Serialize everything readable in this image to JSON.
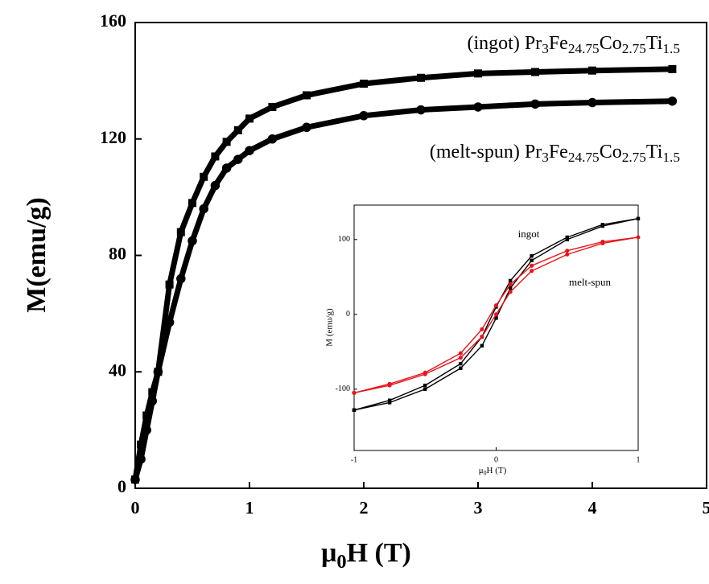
{
  "chart_data": [
    {
      "type": "scatter",
      "xlabel": [
        "μ",
        "0",
        "H (T)"
      ],
      "ylabel": "M(emu/g)",
      "annotations": [
        [
          "(ingot) Pr",
          "3",
          "Fe",
          "24.75",
          "Co",
          "2.75",
          "Ti",
          "1.5"
        ],
        [
          "(melt-spun) Pr",
          "3",
          "Fe",
          "24.75",
          "Co",
          "2.75",
          "Ti",
          "1.5"
        ]
      ],
      "x": [
        0,
        0.05,
        0.1,
        0.15,
        0.2,
        0.3,
        0.4,
        0.5,
        0.6,
        0.7,
        0.8,
        0.9,
        1.0,
        1.2,
        1.5,
        2,
        2.5,
        3,
        3.5,
        4,
        4.7
      ],
      "series": [
        {
          "name": "ingot",
          "color": "#000000",
          "marker": "square",
          "values": [
            3,
            15,
            25,
            33,
            40,
            70,
            88,
            98,
            107,
            114,
            119,
            123,
            127,
            131,
            135,
            139,
            141,
            142.5,
            143,
            143.5,
            144
          ]
        },
        {
          "name": "melt-spun",
          "color": "#000000",
          "marker": "circle",
          "values": [
            3,
            10,
            20,
            30,
            40,
            57,
            72,
            85,
            96,
            104,
            110,
            113,
            116,
            120,
            124,
            128,
            130,
            131,
            132,
            132.5,
            133
          ]
        }
      ],
      "xlim": [
        0,
        5
      ],
      "xticks": [
        0,
        1,
        2,
        3,
        4,
        5
      ],
      "ylim": [
        0,
        160
      ],
      "yticks": [
        0,
        40,
        80,
        120,
        160
      ]
    },
    {
      "type": "line",
      "xlabel": [
        "μ",
        "0",
        "H (T)"
      ],
      "ylabel": "M (emu/g)",
      "annotations": [
        [
          "ingot"
        ],
        [
          "melt-spun"
        ]
      ],
      "series": [
        {
          "name": "ingot",
          "color": "#000000",
          "marker": "square",
          "x": [
            -1,
            -0.75,
            -0.5,
            -0.25,
            -0.1,
            0,
            0.1,
            0.25,
            0.5,
            0.75,
            1,
            0.75,
            0.5,
            0.25,
            0.1,
            0,
            -0.1,
            -0.25,
            -0.5,
            -0.75,
            -1
          ],
          "values": [
            -128,
            -118,
            -100,
            -72,
            -42,
            -5,
            35,
            72,
            100,
            118,
            128,
            120,
            103,
            78,
            45,
            10,
            -30,
            -66,
            -95,
            -115,
            -128
          ]
        },
        {
          "name": "melt-spun",
          "color": "#e8141c",
          "marker": "circle",
          "x": [
            -1,
            -0.75,
            -0.5,
            -0.25,
            -0.1,
            0,
            0.1,
            0.25,
            0.5,
            0.75,
            1,
            0.75,
            0.5,
            0.25,
            0.1,
            0,
            -0.1,
            -0.25,
            -0.5,
            -0.75,
            -1
          ],
          "values": [
            -105,
            -95,
            -80,
            -58,
            -30,
            0,
            30,
            58,
            80,
            95,
            103,
            97,
            85,
            65,
            40,
            12,
            -20,
            -52,
            -78,
            -93,
            -105
          ]
        }
      ],
      "xlim": [
        -1,
        1
      ],
      "xticks": [
        -1,
        0,
        1
      ],
      "ylim": [
        -182,
        146
      ],
      "yticks": [
        -100,
        0,
        100
      ]
    }
  ]
}
